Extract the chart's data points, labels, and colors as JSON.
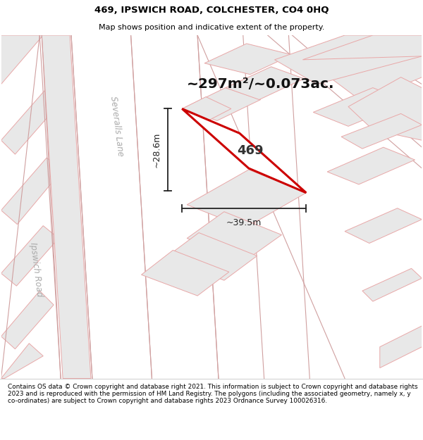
{
  "title_line1": "469, IPSWICH ROAD, COLCHESTER, CO4 0HQ",
  "title_line2": "Map shows position and indicative extent of the property.",
  "area_text": "~297m²/~0.073ac.",
  "label_469": "469",
  "dim_width": "~39.5m",
  "dim_height": "~28.6m",
  "road_label_1": "Severalls Lane",
  "road_label_2": "Ipswich Road",
  "footer_text": "Contains OS data © Crown copyright and database right 2021. This information is subject to Crown copyright and database rights 2023 and is reproduced with the permission of HM Land Registry. The polygons (including the associated geometry, namely x, y co-ordinates) are subject to Crown copyright and database rights 2023 Ordnance Survey 100026316.",
  "bg_color": "#f5f5f5",
  "block_fill": "#e8e8e8",
  "block_stroke": "#e8a8a8",
  "road_stroke": "#d0a0a0",
  "highlight_fill": "#ffffff",
  "highlight_stroke": "#cc0000",
  "label_color": "#555555",
  "title_color": "#000000",
  "footer_color": "#000000",
  "dim_color": "#222222"
}
